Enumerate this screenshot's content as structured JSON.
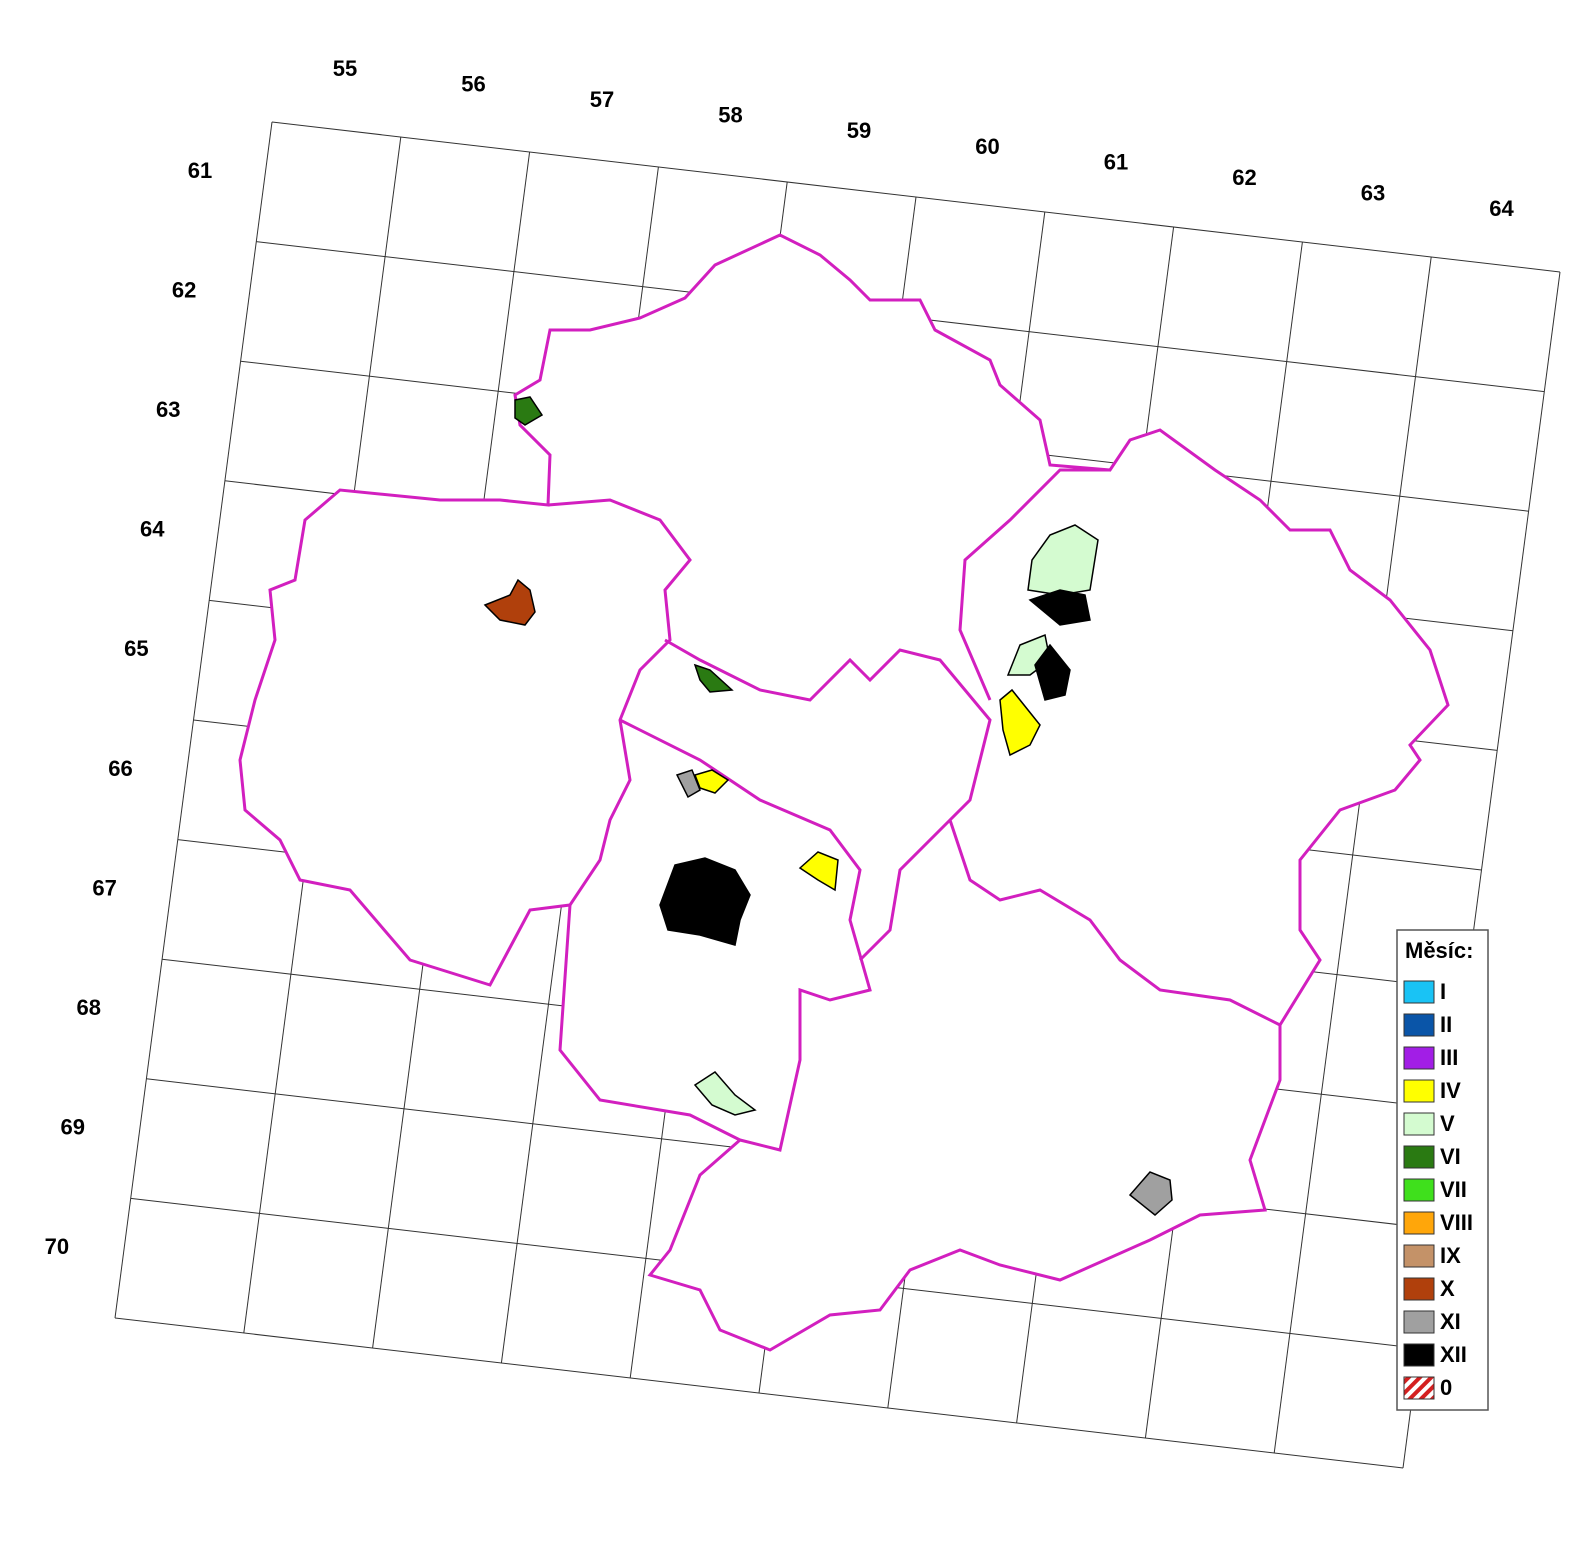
{
  "grid": {
    "columns": [
      "55",
      "56",
      "57",
      "58",
      "59",
      "60",
      "61",
      "62",
      "63",
      "64"
    ],
    "rows": [
      "61",
      "62",
      "63",
      "64",
      "65",
      "66",
      "67",
      "68",
      "69",
      "70"
    ]
  },
  "legend": {
    "title": "Měsíc:",
    "items": [
      {
        "label": "I",
        "color": "#19c3f5"
      },
      {
        "label": "II",
        "color": "#0a55a8"
      },
      {
        "label": "III",
        "color": "#a21ee6"
      },
      {
        "label": "IV",
        "color": "#ffff00"
      },
      {
        "label": "V",
        "color": "#d4fbd0"
      },
      {
        "label": "VI",
        "color": "#2a7a12"
      },
      {
        "label": "VII",
        "color": "#3fe01c"
      },
      {
        "label": "VIII",
        "color": "#ffa60a"
      },
      {
        "label": "IX",
        "color": "#c49268"
      },
      {
        "label": "X",
        "color": "#b0400c"
      },
      {
        "label": "XI",
        "color": "#a0a0a0"
      },
      {
        "label": "XII",
        "color": "#000000"
      },
      {
        "label": "0",
        "color": "#d42020",
        "pattern": "hatch"
      }
    ]
  }
}
